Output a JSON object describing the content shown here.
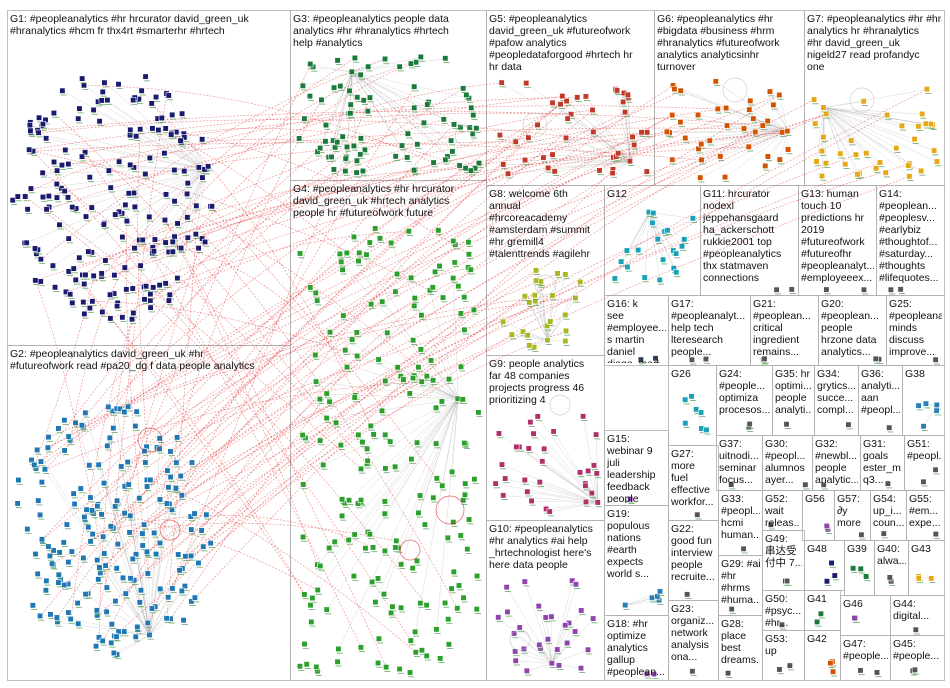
{
  "groups": [
    {
      "id": "G1",
      "label": "G1: #peopleanalytics #hr hrcurator david_green_uk\n#hranalytics #hcm fr thx4rt #smarterhr #hrtech",
      "color": "#1a1a6e"
    },
    {
      "id": "G2",
      "label": "G2: #peopleanalytics david_green_uk #hr\n#futureofwork read #pa20_dg f data people analytics",
      "color": "#1f77b4"
    },
    {
      "id": "G3",
      "label": "G3: #peopleanalytics people data\nanalytics #hr #hranalytics #hrtech\nhelp #analytics",
      "color": "#1a7a3a"
    },
    {
      "id": "G4",
      "label": "G4: #peopleanalytics #hr hrcurator\ndavid_green_uk #hrtech analytics\npeople hr #futureofwork future",
      "color": "#2ca02c"
    },
    {
      "id": "G5",
      "label": "G5: #peopleanalytics\ndavid_green_uk #futureofwork\n#pafow analytics\n#peopledataforgood #hrtech hr\nhr data",
      "color": "#c0392b"
    },
    {
      "id": "G6",
      "label": "G6: #peopleanalytics #hr\n#bigdata #business #hrm\n#hranalytics #futureofwork\nanalytics analyticsinhr\nturnover",
      "color": "#d35400"
    },
    {
      "id": "G7",
      "label": "G7: #peopleanalytics #hr #hranalytics\nanalytics hr #hranalytics\n#hr david_green_uk\nnigeld27 read profandyc\none",
      "color": "#e6a817"
    },
    {
      "id": "G8",
      "label": "G8: welcome 6th\nannual\n#hrcoreacademy\n#amsterdam #summit\n#hr gremill4\n#talenttrends #agilehr",
      "color": "#a8b820"
    },
    {
      "id": "G9",
      "label": "G9: people analytics\nfar 48 companies\nprojects progress 46\nprioritizing 4",
      "color": "#b0306a"
    },
    {
      "id": "G10",
      "label": "G10: #peopleanalytics\n#hr analytics #ai help\n_hrtechnologist here's\nhere data people",
      "color": "#8e44ad"
    },
    {
      "id": "G11",
      "label": "G11: hrcurator\nnodexl\njeppehansgaard\nha_ackerschott\nrukkie2001 top\n#peopleanalytics\nthx statmaven\nconnections",
      "color": "#555555"
    },
    {
      "id": "G12",
      "label": "G12",
      "color": "#17a2b8"
    },
    {
      "id": "G13",
      "label": "G13: human\ntouch 10\npredictions hr\n2019\n#futureofwork\n#futureofhr\n#peopleanalyt...\n#employeeex...",
      "color": "#555555"
    },
    {
      "id": "G14",
      "label": "G14:\n#peoplean...\n#peoplesv...\n#earlybiz\n#thoughtof...\n#saturday...\n#thoughts\n#lifequotes...",
      "color": "#555555"
    },
    {
      "id": "G15",
      "label": "G15:\nwebinar 9\njuli\nleadership\nfeedback\npeople\nanalytics...",
      "color": "#8e44ad"
    },
    {
      "id": "G16",
      "label": "G16: k\nsee\n#employee...\ns martin\ndaniel\ndiago_mad...",
      "color": "#2c3e50"
    },
    {
      "id": "G17",
      "label": "G17:\n#peopleanalyt...\nhelp tech\nlteresearch\npeople...",
      "color": "#555555"
    },
    {
      "id": "G18",
      "label": "G18: #hr\noptimize\nanalytics\ngallup\n#peoplean...\nopportunity...",
      "color": "#8e44ad"
    },
    {
      "id": "G19",
      "label": "G19:\npopulous\nnations\n#earth\nexpects\nworld s...",
      "color": "#2980b9"
    },
    {
      "id": "G20",
      "label": "G20:\n#peoplean...\npeople\nhrzone data\nanalytics...",
      "color": "#555555"
    },
    {
      "id": "G21",
      "label": "G21:\n#peoplean...\ncritical\ningredient\nremains...",
      "color": "#555555"
    },
    {
      "id": "G22",
      "label": "G22:\ngood fun\ninterview\npeople\nrecruite...",
      "color": "#555555"
    },
    {
      "id": "G23",
      "label": "G23:\norganiz...\nnetwork\nanalysis\nona...",
      "color": "#555555"
    },
    {
      "id": "G24",
      "label": "G24:\n#people...\noptimiza\nprocesos...",
      "color": "#555555"
    },
    {
      "id": "G25",
      "label": "G25:\n#peopleana...\nminds\ndiscuss\nimprove...",
      "color": "#555555"
    },
    {
      "id": "G26",
      "label": "G26",
      "color": "#17a2b8"
    },
    {
      "id": "G27",
      "label": "G27:\nmore\nfuel\neffective\nworkfor...",
      "color": "#555555"
    },
    {
      "id": "G28",
      "label": "G28:\nplace\nbest\ndreams...",
      "color": "#555555"
    },
    {
      "id": "G29",
      "label": "G29: #ai\n#hr\n#hrms\n#huma...",
      "color": "#555555"
    },
    {
      "id": "G30",
      "label": "G30:\n#peopl...\nalumnos\nayer...",
      "color": "#555555"
    },
    {
      "id": "G31",
      "label": "G31:\ngoals\nester_m...\nq3...",
      "color": "#555555"
    },
    {
      "id": "G32",
      "label": "G32:\n#newbl...\npeople\nanalytic...",
      "color": "#555555"
    },
    {
      "id": "G33",
      "label": "G33:\n#peopl...\nhcmi\nhuman...",
      "color": "#555555"
    },
    {
      "id": "G34",
      "label": "G34:\ngrytics...\nsucce...\ncompl...",
      "color": "#555555"
    },
    {
      "id": "G35",
      "label": "G35: hr\noptimi...\npeople\nanalyti...",
      "color": "#555555"
    },
    {
      "id": "G36",
      "label": "G36:\nanalyti...\naan\n#peopl...",
      "color": "#555555"
    },
    {
      "id": "G37",
      "label": "G37:\nuitnodi...\nseminar\nfocus...",
      "color": "#555555"
    },
    {
      "id": "G38",
      "label": "G38",
      "color": "#2980b9"
    },
    {
      "id": "G39",
      "label": "G39",
      "color": "#1a7a3a"
    },
    {
      "id": "G40",
      "label": "G40:\nalwa...",
      "color": "#555555"
    },
    {
      "id": "G41",
      "label": "G41",
      "color": "#1a7a3a"
    },
    {
      "id": "G42",
      "label": "G42",
      "color": "#d35400"
    },
    {
      "id": "G43",
      "label": "G43",
      "color": "#e6a817"
    },
    {
      "id": "G44",
      "label": "G44:\ndigital...",
      "color": "#555555"
    },
    {
      "id": "G45",
      "label": "G45:\n#people...",
      "color": "#555555"
    },
    {
      "id": "G46",
      "label": "G46",
      "color": "#8e44ad"
    },
    {
      "id": "G47",
      "label": "G47:\n#people...",
      "color": "#555555"
    },
    {
      "id": "G48",
      "label": "G48",
      "color": "#1a1a6e"
    },
    {
      "id": "G49",
      "label": "G49:\n串达受\n付中 7...",
      "color": "#555555"
    },
    {
      "id": "G50",
      "label": "G50:\n#psyc...\n#hr...",
      "color": "#555555"
    },
    {
      "id": "G51",
      "label": "G51:\n#peopl...",
      "color": "#555555"
    },
    {
      "id": "G52",
      "label": "G52:\nwait\nreleas...",
      "color": "#555555"
    },
    {
      "id": "G53",
      "label": "G53:\nup",
      "color": "#555555"
    },
    {
      "id": "G54",
      "label": "G54:\nup_i...\ncoun...",
      "color": "#555555"
    },
    {
      "id": "G55",
      "label": "G55:\n#em...\nexpe...",
      "color": "#555555"
    },
    {
      "id": "G56",
      "label": "G56",
      "color": "#8e44ad"
    },
    {
      "id": "G57",
      "label": "G57:\n∂y\nmore",
      "color": "#555555"
    }
  ],
  "edge_colors": {
    "intra": "#9a9a9a",
    "cross": "#e02020"
  },
  "panel_border": "#b0b0b0"
}
